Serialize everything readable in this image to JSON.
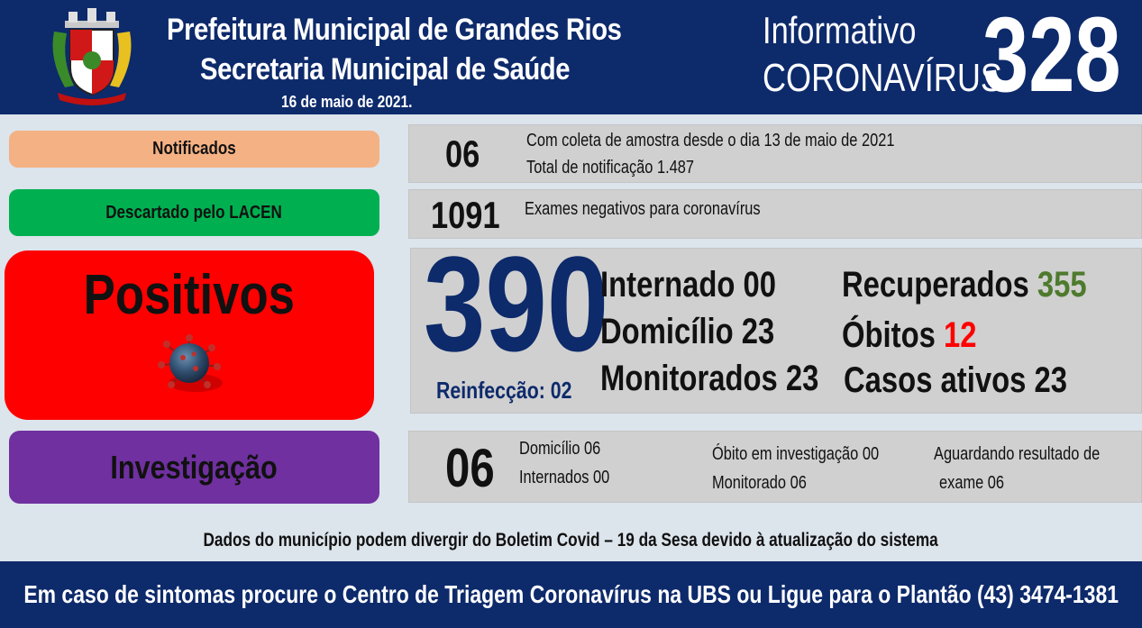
{
  "header": {
    "title_line1": "Prefeitura Municipal de Grandes Rios",
    "title_line2": "Secretaria Municipal de Saúde",
    "date": "16 de maio de 2021.",
    "info_line1": "Informativo",
    "info_line2": "CORONAVÍRUS",
    "bulletin_number": "328"
  },
  "notificados": {
    "label": "Notificados",
    "count": "06",
    "line1": "Com coleta de amostra desde o dia 13 de maio de 2021",
    "line2": "Total de notificação 1.487"
  },
  "descartados": {
    "label": "Descartado  pelo LACEN",
    "count": "1091",
    "text": "Exames negativos  para coronavírus"
  },
  "positivos": {
    "label": "Positivos",
    "count": "390",
    "reinfeccao": "Reinfecção: 02",
    "internado": "Internado 00",
    "domicilio": "Domicílio 23",
    "monitorados": "Monitorados 23",
    "recuperados_label": "Recuperados",
    "recuperados_value": "355",
    "obitos_label": "Óbitos",
    "obitos_value": "12",
    "casos_ativos": "Casos ativos 23"
  },
  "investigacao": {
    "label": "Investigação",
    "count": "06",
    "domicilio": "Domicílio 06",
    "internados": "Internados 00",
    "obito": "Óbito  em investigação  00",
    "monitorado": "Monitorado 06",
    "aguardando_line1": "Aguardando resultado de",
    "aguardando_line2": "exame 06"
  },
  "note": "Dados do município podem divergir do Boletim  Covid – 19 da Sesa devido à atualização  do sistema",
  "footer": "Em caso de sintomas  procure  o Centro de Triagem  Coronavírus  na UBS ou Ligue  para o Plantão  (43) 3474-1381",
  "colors": {
    "navy": "#0d2a6b",
    "notificados": "#f4b183",
    "descartados": "#00b050",
    "positivos": "#ff0000",
    "investigacao": "#7030a0",
    "recuperados": "#4e7a2e",
    "obitos": "#ff0000"
  }
}
